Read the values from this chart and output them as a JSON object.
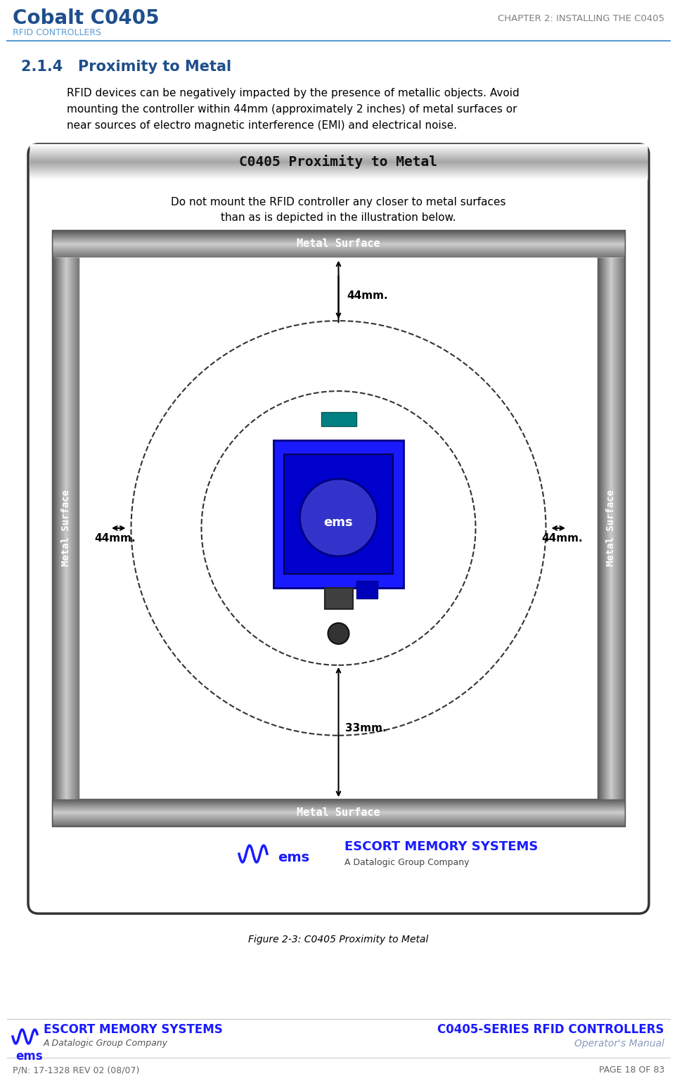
{
  "page_bg": "#ffffff",
  "header_line_color": "#5b9bd5",
  "header_title_color": "#1f4e8c",
  "header_subtitle_color": "#5b9bd5",
  "header_right_color": "#808080",
  "section_title": "2.1.4   Proximity to Metal",
  "section_title_color": "#1f4e8c",
  "body_text_line1": "RFID devices can be negatively impacted by the presence of metallic objects. Avoid",
  "body_text_line2": "mounting the controller within 44mm (approximately 2 inches) of metal surfaces or",
  "body_text_line3": "near sources of electro magnetic interference (EMI) and electrical noise.",
  "figure_title": "C0405 Proximity to Metal",
  "figure_subtitle_line1": "Do not mount the RFID controller any closer to metal surfaces",
  "figure_subtitle_line2": "than as is depicted in the illustration below.",
  "metal_surface_label": "Metal Surface",
  "label_44mm_top": "44mm.",
  "label_44mm_left": "44mm.",
  "label_44mm_right": "44mm.",
  "label_33mm_bottom": "33mm.",
  "caption": "Figure 2-3: C0405 Proximity to Metal",
  "footer_left_line1": "ESCORT MEMORY SYSTEMS",
  "footer_left_line2": "A Datalogic Group Company",
  "footer_left_line3": "ems",
  "footer_right_line1": "C0405-SERIES RFID CONTROLLERS",
  "footer_right_line2": "Operator's Manual",
  "footer_bottom_left": "P/N: 17-1328 REV 02 (08/07)",
  "footer_bottom_right": "PAGE 18 OF 83",
  "cobalt_title": "Cobalt C0405",
  "rfid_controllers": "RFID CONTROLLERS",
  "chapter_header": "CHAPTER 2: INSTALLING THE C0405"
}
